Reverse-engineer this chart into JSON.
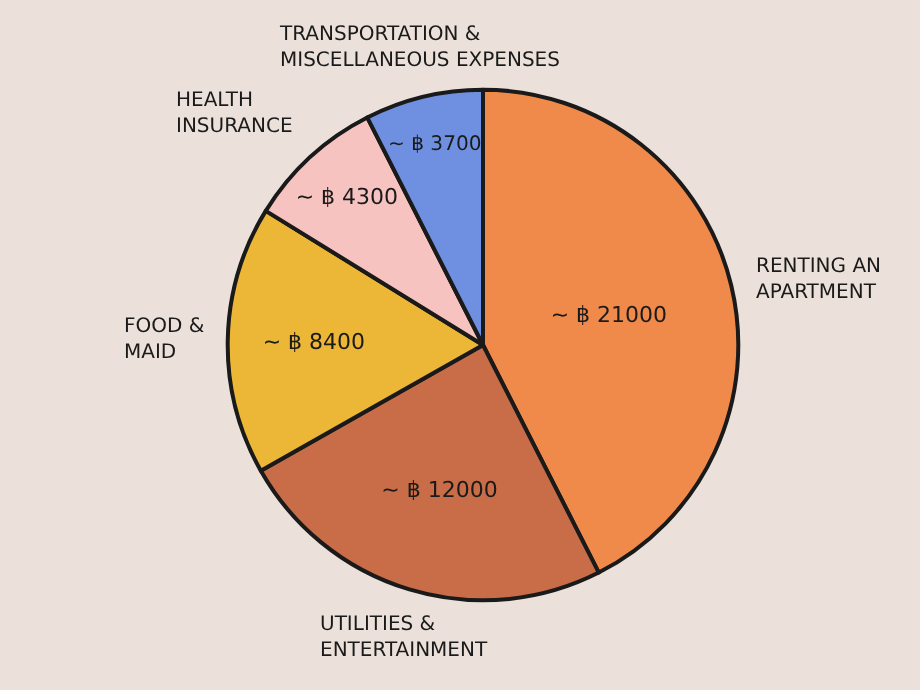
{
  "chart_data": {
    "type": "pie",
    "categories": [
      "RENTING AN\nAPARTMENT",
      "UTILITIES &\nENTERTAINMENT",
      "FOOD &\nMAID",
      "HEALTH\nINSURANCE",
      "TRANSPORTATION &\nMISCELLANEOUS EXPENSES"
    ],
    "values": [
      21000,
      12000,
      8400,
      4300,
      3700
    ],
    "value_labels": [
      "~ ฿ 21000",
      "~ ฿ 12000",
      "~ ฿ 8400",
      "~ ฿ 4300",
      "~ ฿ 3700"
    ],
    "colors": [
      "#f08a4b",
      "#c86d47",
      "#ecb636",
      "#f6c3c0",
      "#6f90e0"
    ],
    "legend": false
  }
}
